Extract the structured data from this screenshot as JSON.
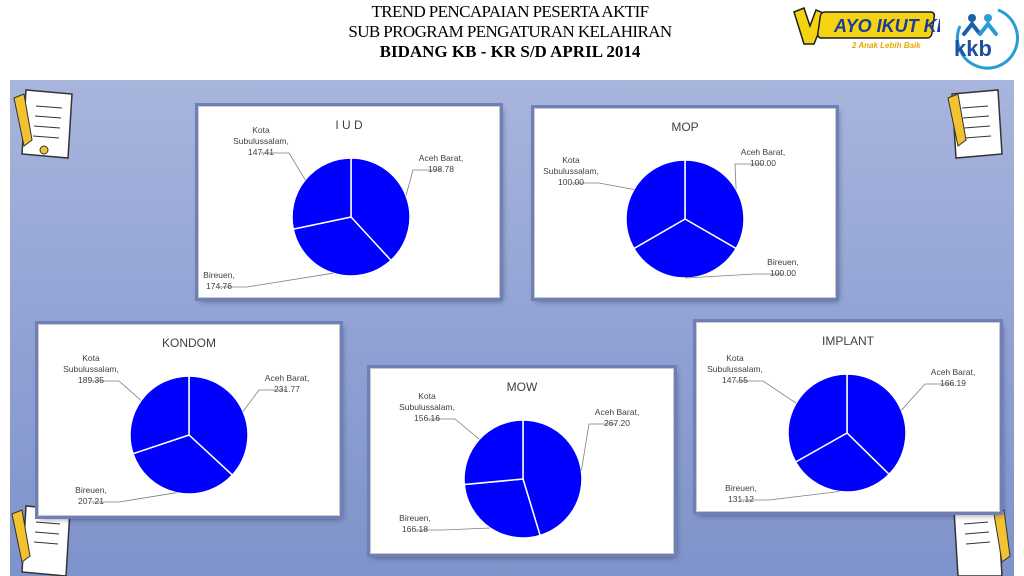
{
  "header": {
    "line1": "TREND PENCAPAIAN  PESERTA  AKTIF",
    "line2": "SUB    PROGRAM  PENGATURAN    KELAHIRAN",
    "line3": "BIDANG KB - KR S/D  APRIL 2014"
  },
  "logos": {
    "ayo_text": "AYO IKUT KB",
    "ayo_tagline": "2 Anak Lebih Baik",
    "kkb_text": "kkb"
  },
  "colors": {
    "slice": "#0000ff",
    "slice_edge": "#ffffff",
    "leader": "#7f7f7f"
  },
  "chart_data": [
    {
      "type": "pie",
      "title": "I U D",
      "labels": [
        "Aceh Barat",
        "Bireuen",
        "Kota Subulussalam"
      ],
      "values": [
        198.78,
        174.76,
        147.41
      ],
      "value_labels": [
        "198.78",
        "174.76",
        "147.41"
      ]
    },
    {
      "type": "pie",
      "title": "MOP",
      "labels": [
        "Aceh Barat",
        "Bireuen",
        "Kota Subulussalam"
      ],
      "values": [
        100.0,
        100.0,
        100.0
      ],
      "value_labels": [
        "100.00",
        "100.00",
        "100.00"
      ]
    },
    {
      "type": "pie",
      "title": "KONDOM",
      "labels": [
        "Aceh Barat",
        "Bireuen",
        "Kota Subulussalam"
      ],
      "values": [
        231.77,
        207.21,
        189.35
      ],
      "value_labels": [
        "231.77",
        "207.21",
        "189.35"
      ]
    },
    {
      "type": "pie",
      "title": "MOW",
      "labels": [
        "Aceh Barat",
        "Bireuen",
        "Kota Subulussalam"
      ],
      "values": [
        267.2,
        166.18,
        156.16
      ],
      "value_labels": [
        "267.20",
        "166.18",
        "156.16"
      ]
    },
    {
      "type": "pie",
      "title": "IMPLANT",
      "labels": [
        "Aceh Barat",
        "Bireuen",
        "Kota Subulussalam"
      ],
      "values": [
        166.19,
        131.12,
        147.55
      ],
      "value_labels": [
        "166.19",
        "131.12",
        "147.55"
      ]
    }
  ]
}
